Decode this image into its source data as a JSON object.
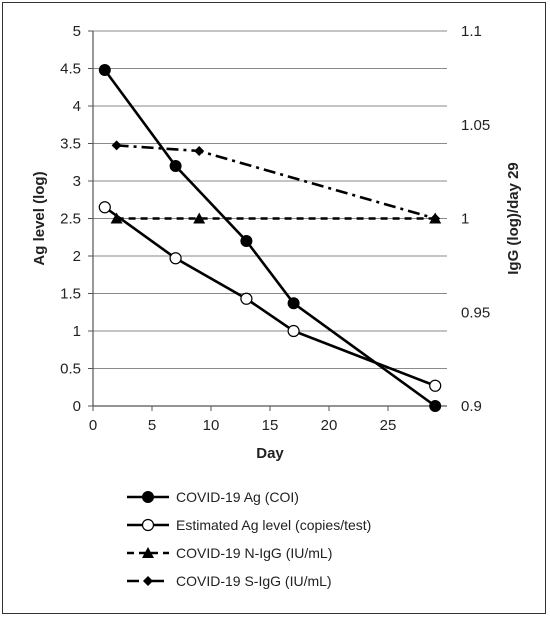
{
  "chart_data": {
    "type": "line",
    "xlabel": "Day",
    "ylabel": "Ag level (log)",
    "y2label": "IgG (log)/day 29",
    "xlim": [
      0,
      30
    ],
    "ylim": [
      0,
      5
    ],
    "y2lim": [
      0.9,
      1.1
    ],
    "x_ticks": [
      "0",
      "5",
      "10",
      "15",
      "20",
      "25"
    ],
    "y_ticks": [
      "0",
      "0.5",
      "1",
      "1.5",
      "2",
      "2.5",
      "3",
      "3.5",
      "4",
      "4.5",
      "5"
    ],
    "y2_ticks": [
      "0.9",
      "0.95",
      "1",
      "1.05",
      "1.1"
    ],
    "grid": "horizontal",
    "legend_position": "bottom",
    "series": [
      {
        "name": "COVID-19 Ag (COI)",
        "axis": "left",
        "line": "solid",
        "marker": "filled-circle",
        "x": [
          1,
          7,
          13,
          17,
          29
        ],
        "y": [
          4.48,
          3.2,
          2.2,
          1.37,
          0.0
        ]
      },
      {
        "name": "Estimated Ag level (copies/test)",
        "axis": "left",
        "line": "solid",
        "marker": "open-circle",
        "x": [
          1,
          7,
          13,
          17,
          29
        ],
        "y": [
          2.65,
          1.97,
          1.43,
          1.0,
          0.27
        ]
      },
      {
        "name": "COVID-19 N-IgG (IU/mL)",
        "axis": "right",
        "line": "dashed",
        "marker": "triangle",
        "x": [
          2,
          9,
          29
        ],
        "y": [
          1.0,
          1.0,
          1.0
        ]
      },
      {
        "name": "COVID-19 S-IgG (IU/mL)",
        "axis": "right",
        "line": "dashdot",
        "marker": "diamond",
        "x": [
          2,
          9,
          29
        ],
        "y": [
          1.039,
          1.036,
          1.0
        ]
      }
    ]
  }
}
